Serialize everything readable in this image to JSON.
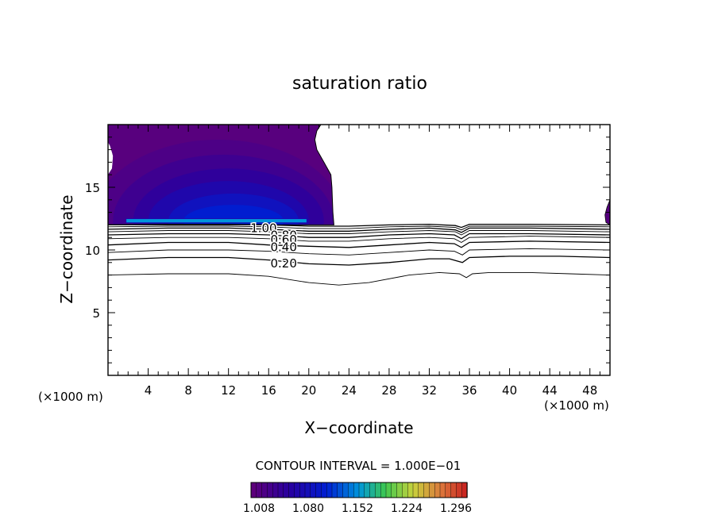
{
  "chart_data": {
    "type": "contour",
    "title": "saturation ratio",
    "xlabel": "X−coordinate",
    "ylabel": "Z−coordinate",
    "x_unit_label": "(×1000 m)",
    "y_unit_label": "(×1000 m)",
    "xlim": [
      0,
      50
    ],
    "ylim": [
      0,
      20
    ],
    "x_ticks": [
      4,
      8,
      12,
      16,
      20,
      24,
      28,
      32,
      36,
      40,
      44,
      48
    ],
    "y_ticks": [
      5,
      10,
      15
    ],
    "contour_interval_text": "CONTOUR INTERVAL = 1.000E−01",
    "colorbar_labels": [
      "1.008",
      "1.080",
      "1.152",
      "1.224",
      "1.296"
    ],
    "colorbar_range": [
      1.0,
      1.32
    ],
    "contour_labels": [
      {
        "text": "1.00",
        "x": 15.5,
        "z": 11.8
      },
      {
        "text": "0.80",
        "x": 17.5,
        "z": 11.25
      },
      {
        "text": "0.60",
        "x": 17.5,
        "z": 10.9
      },
      {
        "text": "0.40",
        "x": 17.5,
        "z": 10.3
      },
      {
        "text": "0.20",
        "x": 17.5,
        "z": 9.0
      }
    ],
    "contour_lines": [
      {
        "level": 0.1,
        "points": [
          [
            0,
            8.0
          ],
          [
            6,
            8.1
          ],
          [
            12,
            8.1
          ],
          [
            16,
            7.9
          ],
          [
            20,
            7.4
          ],
          [
            23,
            7.2
          ],
          [
            26,
            7.4
          ],
          [
            30,
            8.0
          ],
          [
            33,
            8.2
          ],
          [
            35,
            8.1
          ],
          [
            35.7,
            7.8
          ],
          [
            36.3,
            8.1
          ],
          [
            38,
            8.2
          ],
          [
            42,
            8.2
          ],
          [
            46,
            8.1
          ],
          [
            50,
            8.0
          ]
        ]
      },
      {
        "level": 0.2,
        "points": [
          [
            0,
            9.2
          ],
          [
            6,
            9.4
          ],
          [
            12,
            9.4
          ],
          [
            16,
            9.2
          ],
          [
            20,
            8.9
          ],
          [
            24,
            8.8
          ],
          [
            28,
            9.0
          ],
          [
            32,
            9.3
          ],
          [
            34,
            9.3
          ],
          [
            35.3,
            9.0
          ],
          [
            36,
            9.4
          ],
          [
            40,
            9.5
          ],
          [
            45,
            9.5
          ],
          [
            50,
            9.4
          ]
        ]
      },
      {
        "level": 0.3,
        "points": [
          [
            0,
            9.8
          ],
          [
            6,
            10.0
          ],
          [
            12,
            10.0
          ],
          [
            16,
            9.9
          ],
          [
            20,
            9.7
          ],
          [
            24,
            9.6
          ],
          [
            28,
            9.8
          ],
          [
            32,
            10.0
          ],
          [
            34.5,
            9.9
          ],
          [
            35.3,
            9.6
          ],
          [
            36,
            10.0
          ],
          [
            42,
            10.1
          ],
          [
            50,
            10.0
          ]
        ]
      },
      {
        "level": 0.4,
        "points": [
          [
            0,
            10.4
          ],
          [
            6,
            10.6
          ],
          [
            12,
            10.6
          ],
          [
            16,
            10.4
          ],
          [
            20,
            10.3
          ],
          [
            24,
            10.2
          ],
          [
            28,
            10.4
          ],
          [
            32,
            10.6
          ],
          [
            34.5,
            10.5
          ],
          [
            35.2,
            10.2
          ],
          [
            36,
            10.6
          ],
          [
            42,
            10.7
          ],
          [
            50,
            10.6
          ]
        ]
      },
      {
        "level": 0.5,
        "points": [
          [
            0,
            10.9
          ],
          [
            6,
            11.0
          ],
          [
            12,
            11.0
          ],
          [
            16,
            10.9
          ],
          [
            20,
            10.7
          ],
          [
            24,
            10.7
          ],
          [
            28,
            10.9
          ],
          [
            32,
            11.0
          ],
          [
            34.5,
            10.9
          ],
          [
            35.2,
            10.6
          ],
          [
            36,
            11.0
          ],
          [
            42,
            11.1
          ],
          [
            50,
            11.0
          ]
        ]
      },
      {
        "level": 0.6,
        "points": [
          [
            0,
            11.2
          ],
          [
            6,
            11.3
          ],
          [
            12,
            11.3
          ],
          [
            16,
            11.2
          ],
          [
            20,
            11.0
          ],
          [
            24,
            11.0
          ],
          [
            28,
            11.2
          ],
          [
            32,
            11.3
          ],
          [
            34.5,
            11.2
          ],
          [
            35.2,
            10.9
          ],
          [
            36,
            11.3
          ],
          [
            42,
            11.3
          ],
          [
            50,
            11.2
          ]
        ]
      },
      {
        "level": 0.7,
        "points": [
          [
            0,
            11.45
          ],
          [
            6,
            11.55
          ],
          [
            12,
            11.55
          ],
          [
            16,
            11.45
          ],
          [
            20,
            11.3
          ],
          [
            24,
            11.3
          ],
          [
            28,
            11.45
          ],
          [
            32,
            11.55
          ],
          [
            34.6,
            11.45
          ],
          [
            35.2,
            11.2
          ],
          [
            36,
            11.55
          ],
          [
            42,
            11.55
          ],
          [
            50,
            11.45
          ]
        ]
      },
      {
        "level": 0.8,
        "points": [
          [
            0,
            11.65
          ],
          [
            6,
            11.75
          ],
          [
            12,
            11.75
          ],
          [
            16,
            11.65
          ],
          [
            20,
            11.5
          ],
          [
            24,
            11.5
          ],
          [
            28,
            11.65
          ],
          [
            32,
            11.75
          ],
          [
            34.6,
            11.6
          ],
          [
            35.2,
            11.4
          ],
          [
            36,
            11.75
          ],
          [
            42,
            11.75
          ],
          [
            50,
            11.65
          ]
        ]
      },
      {
        "level": 0.9,
        "points": [
          [
            0,
            11.85
          ],
          [
            6,
            11.9
          ],
          [
            12,
            11.9
          ],
          [
            16,
            11.85
          ],
          [
            20,
            11.7
          ],
          [
            24,
            11.7
          ],
          [
            28,
            11.85
          ],
          [
            32,
            11.9
          ],
          [
            34.6,
            11.8
          ],
          [
            35.2,
            11.6
          ],
          [
            36,
            11.9
          ],
          [
            42,
            11.9
          ],
          [
            50,
            11.85
          ]
        ]
      },
      {
        "level": 1.0,
        "points": [
          [
            0,
            12.0
          ],
          [
            6,
            12.05
          ],
          [
            12,
            12.05
          ],
          [
            16,
            12.0
          ],
          [
            20,
            11.9
          ],
          [
            24,
            11.9
          ],
          [
            28,
            12.0
          ],
          [
            32,
            12.05
          ],
          [
            34.6,
            11.95
          ],
          [
            35.2,
            11.8
          ],
          [
            36,
            12.05
          ],
          [
            42,
            12.05
          ],
          [
            50,
            12.0
          ]
        ]
      }
    ],
    "supersat_region_left": {
      "boundary": [
        [
          0,
          20
        ],
        [
          21.2,
          20
        ],
        [
          20.8,
          19.5
        ],
        [
          20.6,
          18.8
        ],
        [
          20.8,
          18.0
        ],
        [
          21.5,
          17.0
        ],
        [
          22.2,
          16.0
        ],
        [
          22.3,
          15.0
        ],
        [
          22.4,
          13.0
        ],
        [
          22.5,
          12.0
        ],
        [
          0,
          12.0
        ],
        [
          0,
          16.0
        ],
        [
          0.4,
          16.5
        ],
        [
          0.5,
          17.5
        ],
        [
          0.2,
          18.3
        ],
        [
          0,
          18.6
        ]
      ],
      "bands": [
        {
          "value": 1.008,
          "center": [
            11,
            12.3
          ],
          "rx": 14,
          "rz": 8.2
        },
        {
          "value": 1.02,
          "center": [
            11,
            12.3
          ],
          "rx": 12.5,
          "rz": 6.5
        },
        {
          "value": 1.035,
          "center": [
            11.5,
            12.3
          ],
          "rx": 11,
          "rz": 5.3
        },
        {
          "value": 1.05,
          "center": [
            12,
            12.3
          ],
          "rx": 9.5,
          "rz": 4.2
        },
        {
          "value": 1.07,
          "center": [
            12,
            12.3
          ],
          "rx": 8,
          "rz": 3.2
        },
        {
          "value": 1.09,
          "center": [
            12.5,
            12.3
          ],
          "rx": 6.5,
          "rz": 2.2
        },
        {
          "value": 1.11,
          "center": [
            12.5,
            12.3
          ],
          "rx": 5,
          "rz": 1.3
        }
      ],
      "hotspot_strip": {
        "x": [
          1.8,
          19.8
        ],
        "z": 12.3,
        "value": 1.16
      }
    },
    "supersat_region_right": {
      "boundary": [
        [
          50,
          12.0
        ],
        [
          50,
          14.0
        ],
        [
          49.7,
          13.4
        ],
        [
          49.5,
          12.8
        ],
        [
          49.6,
          12.2
        ]
      ]
    }
  }
}
